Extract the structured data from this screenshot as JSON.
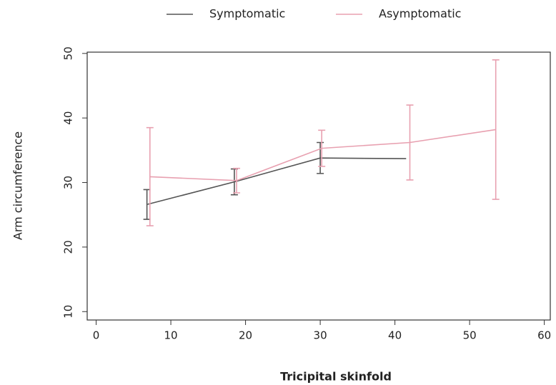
{
  "chart_data": {
    "type": "errorbar-line",
    "x_label": "Tricipital skinfold",
    "y_label": "Arm circumference",
    "xlim": [
      -1.2,
      60.8
    ],
    "ylim": [
      8.7,
      50.2
    ],
    "xticks": [
      0,
      10,
      20,
      30,
      40,
      50,
      60
    ],
    "yticks": [
      10,
      20,
      30,
      40,
      50
    ],
    "legend": "top",
    "series": [
      {
        "name": "Symptomatic",
        "color": "#555555",
        "x": [
          6.8,
          18.5,
          30.0,
          41.5
        ],
        "values": [
          26.6,
          30.1,
          33.8,
          33.7
        ],
        "errors": [
          2.3,
          2.0,
          2.4,
          null
        ]
      },
      {
        "name": "Asymptomatic",
        "color": "#e8a0b0",
        "x": [
          7.2,
          18.8,
          30.2,
          42.0,
          53.5
        ],
        "values": [
          30.9,
          30.3,
          35.3,
          36.2,
          38.2
        ],
        "errors": [
          7.6,
          1.9,
          2.8,
          5.8,
          10.8
        ]
      }
    ]
  }
}
